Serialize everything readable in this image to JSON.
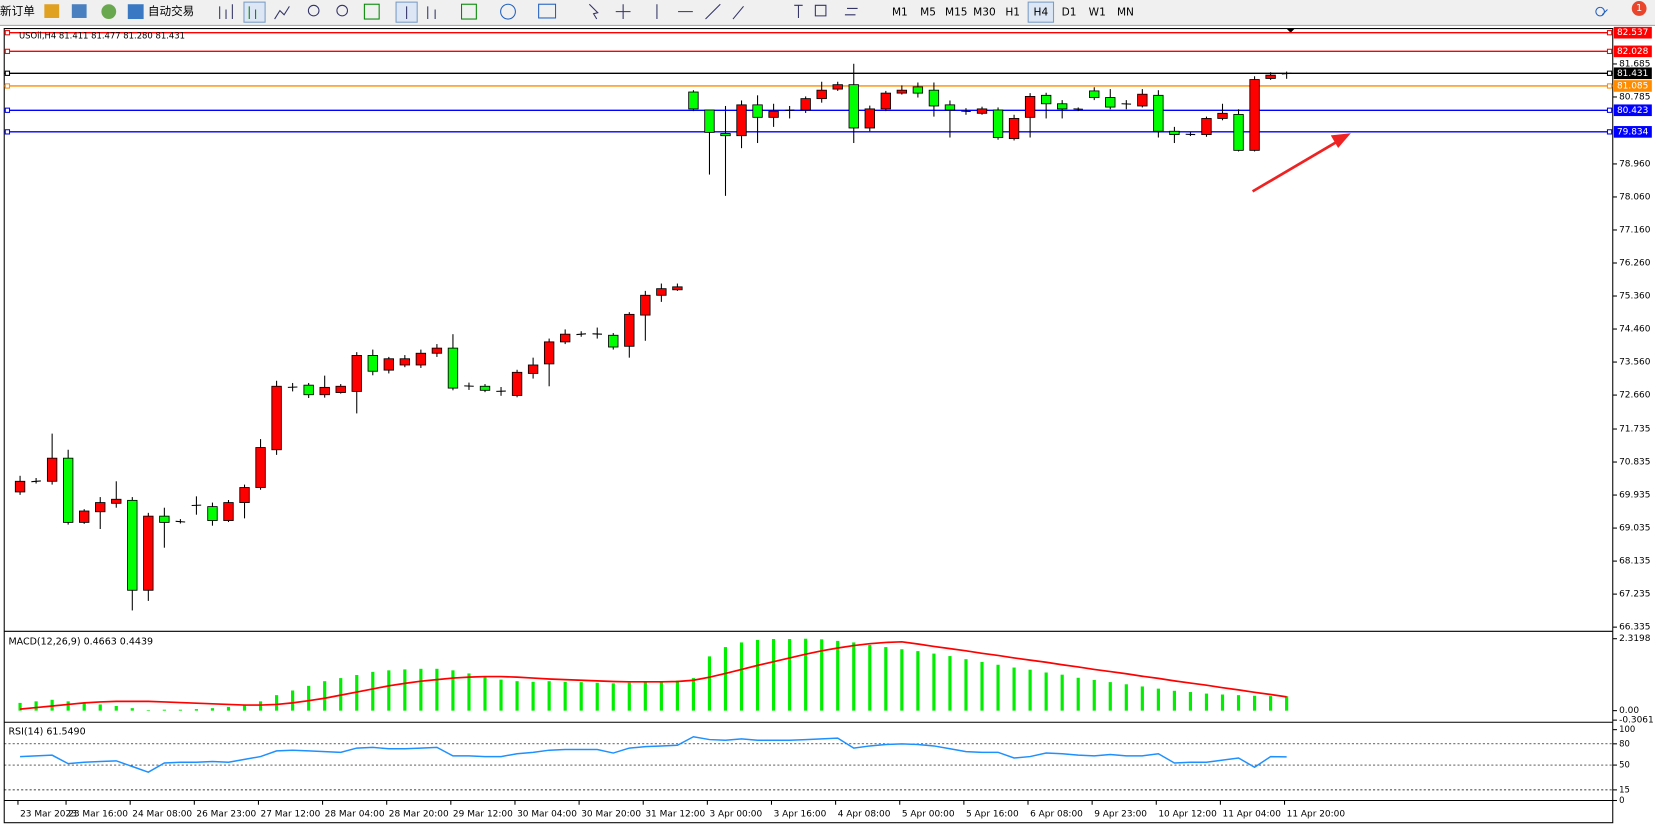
{
  "toolbar": {
    "new_order": "新订单",
    "auto_trading": "自动交易",
    "timeframes": [
      "M1",
      "M5",
      "M15",
      "M30",
      "H1",
      "H4",
      "D1",
      "W1",
      "MN"
    ],
    "notification_count": 1
  },
  "chart_data": {
    "type": "candlestick",
    "title": "USOil,H4  81.411 81.477 81.280 81.431",
    "categories": [
      "23 Mar 2023",
      null,
      null,
      "23 Mar 16:00",
      null,
      null,
      null,
      "24 Mar 08:00",
      null,
      null,
      null,
      "26 Mar 23:00",
      null,
      null,
      null,
      "27 Mar 12:00",
      null,
      null,
      null,
      "28 Mar 04:00",
      null,
      null,
      null,
      "28 Mar 20:00",
      null,
      null,
      null,
      "29 Mar 12:00",
      null,
      null,
      null,
      "30 Mar 04:00",
      null,
      null,
      null,
      "30 Mar 20:00",
      null,
      null,
      null,
      "31 Mar 12:00",
      null,
      null,
      null,
      "3 Apr 00:00",
      null,
      null,
      null,
      "3 Apr 16:00",
      null,
      null,
      null,
      "4 Apr 08:00",
      null,
      null,
      null,
      "5 Apr 00:00",
      null,
      null,
      null,
      "5 Apr 16:00",
      null,
      null,
      null,
      "6 Apr 08:00",
      null,
      null,
      null,
      "9 Apr 23:00",
      null,
      null,
      null,
      "10 Apr 12:00",
      null,
      null,
      null,
      "11 Apr 04:00",
      null,
      null,
      null,
      "11 Apr 20:00"
    ],
    "open": [
      70.02,
      70.3,
      70.31,
      70.94,
      69.19,
      69.48,
      69.71,
      69.79,
      67.34,
      69.36,
      69.22,
      69.65,
      69.62,
      69.24,
      69.73,
      70.14,
      71.17,
      72.87,
      72.93,
      72.67,
      72.73,
      72.76,
      73.74,
      73.34,
      73.48,
      73.48,
      73.8,
      73.94,
      72.91,
      72.9,
      72.76,
      72.65,
      73.25,
      73.51,
      74.11,
      74.31,
      74.33,
      74.29,
      73.99,
      74.84,
      75.38,
      75.53,
      80.92,
      80.43,
      79.79,
      79.73,
      80.57,
      80.23,
      80.42,
      80.43,
      80.74,
      81.0,
      81.12,
      79.94,
      80.46,
      80.89,
      81.06,
      80.97,
      80.57,
      80.4,
      80.34,
      80.43,
      79.65,
      80.23,
      80.83,
      80.6,
      80.46,
      80.95,
      80.77,
      80.6,
      80.54,
      80.83,
      79.85,
      79.77,
      79.76,
      80.2,
      80.31,
      79.33,
      81.29,
      81.411
    ],
    "high": [
      70.46,
      70.4,
      71.61,
      71.17,
      69.55,
      69.88,
      70.31,
      69.88,
      69.45,
      69.59,
      69.28,
      69.9,
      69.73,
      69.8,
      70.22,
      71.46,
      73.05,
      72.99,
      72.99,
      73.19,
      72.96,
      73.83,
      73.9,
      73.7,
      73.75,
      73.9,
      74.05,
      74.32,
      73.0,
      72.96,
      72.88,
      73.35,
      73.68,
      74.2,
      74.45,
      74.4,
      74.5,
      74.35,
      74.92,
      75.5,
      75.7,
      75.7,
      80.97,
      80.43,
      80.54,
      80.69,
      80.83,
      80.6,
      80.54,
      80.8,
      81.2,
      81.2,
      81.69,
      80.55,
      80.95,
      81.1,
      81.18,
      81.18,
      80.69,
      80.48,
      80.52,
      80.5,
      80.3,
      80.89,
      80.9,
      80.7,
      80.5,
      81.05,
      81.0,
      80.7,
      81.0,
      80.97,
      79.97,
      79.82,
      80.25,
      80.6,
      80.45,
      81.35,
      81.46,
      81.477
    ],
    "low": [
      69.94,
      70.25,
      70.22,
      69.13,
      69.15,
      69.01,
      69.59,
      66.79,
      67.05,
      68.5,
      69.16,
      69.4,
      69.1,
      69.2,
      69.3,
      70.08,
      71.03,
      72.76,
      72.58,
      72.59,
      72.7,
      72.16,
      73.2,
      73.25,
      73.42,
      73.4,
      73.7,
      72.79,
      72.8,
      72.74,
      72.64,
      72.6,
      73.11,
      72.9,
      74.05,
      74.25,
      74.2,
      73.9,
      73.68,
      74.14,
      75.2,
      75.5,
      80.4,
      78.67,
      78.09,
      79.39,
      79.53,
      79.97,
      80.2,
      80.35,
      80.63,
      80.95,
      79.53,
      79.85,
      80.4,
      80.85,
      80.77,
      80.25,
      79.68,
      80.3,
      80.3,
      79.62,
      79.6,
      79.68,
      80.2,
      80.2,
      80.4,
      80.7,
      80.45,
      80.45,
      80.5,
      79.68,
      79.53,
      79.72,
      79.7,
      80.15,
      79.3,
      79.3,
      81.25,
      81.28
    ],
    "close": [
      70.31,
      70.32,
      70.94,
      69.19,
      69.5,
      69.73,
      69.82,
      67.34,
      69.36,
      69.19,
      69.2,
      69.66,
      69.24,
      69.73,
      70.14,
      71.23,
      72.9,
      72.88,
      72.67,
      72.87,
      72.9,
      73.74,
      73.31,
      73.65,
      73.65,
      73.8,
      73.94,
      72.85,
      72.9,
      72.79,
      72.77,
      73.28,
      73.48,
      74.11,
      74.32,
      74.33,
      74.32,
      73.97,
      74.86,
      75.38,
      75.56,
      75.61,
      80.46,
      79.82,
      79.73,
      80.57,
      80.23,
      80.4,
      80.43,
      80.74,
      80.97,
      81.12,
      79.94,
      80.46,
      80.89,
      80.97,
      80.89,
      80.54,
      80.43,
      80.39,
      80.46,
      79.68,
      80.2,
      80.8,
      80.6,
      80.46,
      80.45,
      80.77,
      80.51,
      80.59,
      80.86,
      79.85,
      79.76,
      79.76,
      80.2,
      80.34,
      79.33,
      81.26,
      81.38,
      81.431
    ],
    "up_color": "#ff0000",
    "down_color": "#00ff00",
    "ylim": [
      66.25,
      82.65
    ],
    "yticks": [
      81.685,
      80.785,
      {
        "value": 78.96,
        "label": "78.960"
      },
      {
        "value": 78.06,
        "label": "78.060"
      },
      {
        "value": 77.16,
        "label": "77.160"
      },
      {
        "value": 76.26,
        "label": "76.260"
      },
      {
        "value": 75.36,
        "label": "75.360"
      },
      {
        "value": 74.46,
        "label": "74.460"
      },
      {
        "value": 73.56,
        "label": "73.560"
      },
      {
        "value": 72.66,
        "label": "72.660"
      },
      71.735,
      70.835,
      69.935,
      69.035,
      68.135,
      67.235,
      66.335
    ],
    "hlines": [
      {
        "value": 82.537,
        "color": "#ff0000"
      },
      {
        "value": 82.028,
        "color": "#ff0000"
      },
      {
        "value": 81.431,
        "color": "#000000"
      },
      {
        "value": 81.085,
        "color": "#ff8c00"
      },
      {
        "value": 80.423,
        "color": "#0000ff"
      },
      {
        "value": 79.834,
        "color": "#0000ff"
      }
    ],
    "macd": {
      "label": "MACD(12,26,9) 0.4663 0.4439",
      "color": "#00ee00",
      "signal_color": "#ff0000",
      "histogram": [
        0.25,
        0.3,
        0.35,
        0.3,
        0.25,
        0.2,
        0.15,
        0.08,
        0.02,
        0.03,
        0.03,
        0.05,
        0.08,
        0.12,
        0.2,
        0.3,
        0.5,
        0.65,
        0.8,
        0.95,
        1.05,
        1.15,
        1.25,
        1.3,
        1.33,
        1.35,
        1.35,
        1.3,
        1.2,
        1.1,
        1.0,
        0.95,
        0.93,
        0.95,
        0.93,
        0.92,
        0.9,
        0.88,
        0.9,
        0.92,
        0.95,
        0.97,
        1.05,
        1.75,
        2.05,
        2.2,
        2.28,
        2.31,
        2.31,
        2.3198,
        2.3,
        2.25,
        2.2,
        2.12,
        2.05,
        1.98,
        1.92,
        1.84,
        1.76,
        1.66,
        1.57,
        1.48,
        1.39,
        1.32,
        1.23,
        1.16,
        1.06,
        0.99,
        0.92,
        0.85,
        0.78,
        0.71,
        0.64,
        0.6,
        0.55,
        0.52,
        0.5,
        0.48,
        0.47,
        0.4663
      ],
      "signal": [
        0.05,
        0.1,
        0.15,
        0.2,
        0.25,
        0.28,
        0.3,
        0.3,
        0.3,
        0.28,
        0.26,
        0.24,
        0.22,
        0.2,
        0.18,
        0.18,
        0.2,
        0.25,
        0.32,
        0.4,
        0.5,
        0.6,
        0.7,
        0.8,
        0.88,
        0.95,
        1.0,
        1.05,
        1.08,
        1.1,
        1.1,
        1.08,
        1.05,
        1.02,
        1.0,
        0.98,
        0.96,
        0.94,
        0.93,
        0.93,
        0.93,
        0.94,
        0.98,
        1.08,
        1.2,
        1.33,
        1.46,
        1.58,
        1.7,
        1.82,
        1.93,
        2.02,
        2.1,
        2.16,
        2.2,
        2.22,
        2.15,
        2.07,
        2.0,
        1.93,
        1.85,
        1.78,
        1.7,
        1.63,
        1.56,
        1.48,
        1.41,
        1.33,
        1.26,
        1.19,
        1.11,
        1.04,
        0.96,
        0.89,
        0.82,
        0.74,
        0.67,
        0.59,
        0.52,
        0.4439
      ],
      "ylim": [
        -0.3061,
        2.3198
      ],
      "yticks": [
        2.3198,
        {
          "value": 0,
          "label": "0.00"
        },
        -0.3061
      ]
    },
    "rsi": {
      "label": "RSI(14) 61.5490",
      "color": "#1e90ff",
      "values": [
        62,
        63,
        64,
        52,
        54,
        55,
        56,
        48,
        40,
        53,
        54,
        54,
        55,
        54,
        58,
        62,
        70,
        71,
        70,
        69,
        68,
        74,
        75,
        73,
        73,
        74,
        75,
        63,
        63,
        62,
        62,
        66,
        68,
        71,
        72,
        72,
        72,
        67,
        74,
        76,
        77,
        78,
        90,
        86,
        85,
        87,
        85,
        85,
        85,
        86,
        87,
        88,
        74,
        77,
        79,
        80,
        79,
        77,
        73,
        69,
        68,
        68,
        60,
        62,
        67,
        66,
        64,
        63,
        65,
        63,
        63,
        66,
        53,
        54,
        54,
        57,
        60,
        47,
        62,
        61.549
      ],
      "ylim": [
        0,
        100
      ],
      "yticks": [
        0,
        15,
        50,
        80,
        100
      ]
    }
  }
}
